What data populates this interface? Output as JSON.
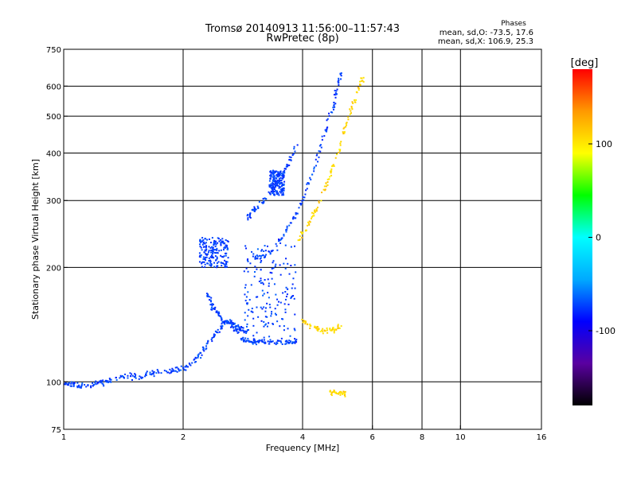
{
  "chart_data": {
    "type": "scatter",
    "title": "Tromsø 20140913 11:56:00–11:57:43",
    "subtitle": "RwPretec (8p)",
    "xlabel": "Frequency [MHz]",
    "ylabel": "Stationary phase Virtual Height [km]",
    "x_scale": "log",
    "y_scale": "log",
    "xlim": [
      1,
      16
    ],
    "ylim": [
      75,
      750
    ],
    "x_ticks": [
      1,
      2,
      4,
      6,
      8,
      10,
      16
    ],
    "y_ticks": [
      75,
      100,
      200,
      300,
      400,
      500,
      600,
      750
    ],
    "x_gridlines": [
      2,
      4,
      6,
      8,
      10
    ],
    "y_gridlines": [
      100,
      200,
      300,
      400,
      500,
      600
    ],
    "grid": true,
    "legend": {
      "heading": "Phases",
      "line1": "mean, sd,O: -73.5, 17.6",
      "line2": "mean, sd,X: 106.9, 25.3",
      "placement": "top-right"
    },
    "colorbar": {
      "label": "[deg]",
      "min": -180,
      "max": 180,
      "ticks": [
        100,
        0,
        -100
      ]
    },
    "color_scale": [
      "#000000",
      "#5a00a0",
      "#0000ff",
      "#00aaff",
      "#00ffff",
      "#00ff00",
      "#ffff00",
      "#ff9900",
      "#ff0000"
    ],
    "series": [
      {
        "mode": "O",
        "phase_mean": -73.5,
        "phase_sd": 17.6,
        "segments": [
          {
            "x": [
              1.0,
              1.04,
              1.08,
              1.13,
              1.2,
              1.27,
              1.35,
              1.45,
              1.55,
              1.65,
              1.75,
              1.88,
              2.0
            ],
            "y": [
              98,
              99,
              98,
              97,
              99,
              100,
              102,
              104,
              103,
              105,
              106,
              107,
              108
            ]
          },
          {
            "x": [
              2.0,
              2.1,
              2.2,
              2.3,
              2.4,
              2.5,
              2.6,
              2.7,
              2.8,
              2.9
            ],
            "y": [
              108,
              112,
              118,
              125,
              132,
              140,
              145,
              142,
              138,
              135
            ]
          },
          {
            "x": [
              2.3,
              2.35,
              2.4,
              2.5,
              2.6,
              2.7,
              2.8
            ],
            "y": [
              170,
              160,
              155,
              148,
              142,
              138,
              136
            ]
          },
          {
            "x": [
              2.8,
              2.9,
              3.0,
              3.1,
              3.3,
              3.5,
              3.7,
              3.9
            ],
            "y": [
              130,
              129,
              128,
              128,
              127,
              127,
              127,
              128
            ]
          },
          {
            "x": [
              3.0,
              3.2,
              3.4,
              3.6,
              3.8,
              4.0,
              4.2,
              4.4,
              4.6,
              4.8,
              4.9,
              5.0
            ],
            "y": [
              210,
              215,
              225,
              245,
              270,
              300,
              345,
              400,
              470,
              540,
              600,
              650
            ]
          },
          {
            "x": [
              2.9,
              3.0,
              3.1,
              3.3,
              3.5,
              3.7,
              3.9
            ],
            "y": [
              270,
              280,
              290,
              310,
              340,
              380,
              420
            ]
          }
        ],
        "clusters": [
          {
            "x": [
              2.85,
              3.85
            ],
            "y": [
              125,
              230
            ]
          },
          {
            "x": [
              2.2,
              2.6
            ],
            "y": [
              200,
              240
            ]
          },
          {
            "x": [
              3.3,
              3.6
            ],
            "y": [
              310,
              360
            ]
          }
        ]
      },
      {
        "mode": "X",
        "phase_mean": 106.9,
        "phase_sd": 25.3,
        "segments": [
          {
            "x": [
              3.9,
              4.1,
              4.3,
              4.5,
              4.7,
              4.9,
              5.1,
              5.3,
              5.5,
              5.7
            ],
            "y": [
              235,
              255,
              280,
              310,
              350,
              400,
              460,
              520,
              580,
              640
            ]
          },
          {
            "x": [
              4.0,
              4.2,
              4.4,
              4.6,
              4.8,
              5.0
            ],
            "y": [
              145,
              140,
              137,
              136,
              137,
              140
            ]
          },
          {
            "x": [
              4.7,
              4.85,
              5.0,
              5.15
            ],
            "y": [
              93,
              94,
              94,
              93
            ]
          }
        ]
      }
    ]
  }
}
